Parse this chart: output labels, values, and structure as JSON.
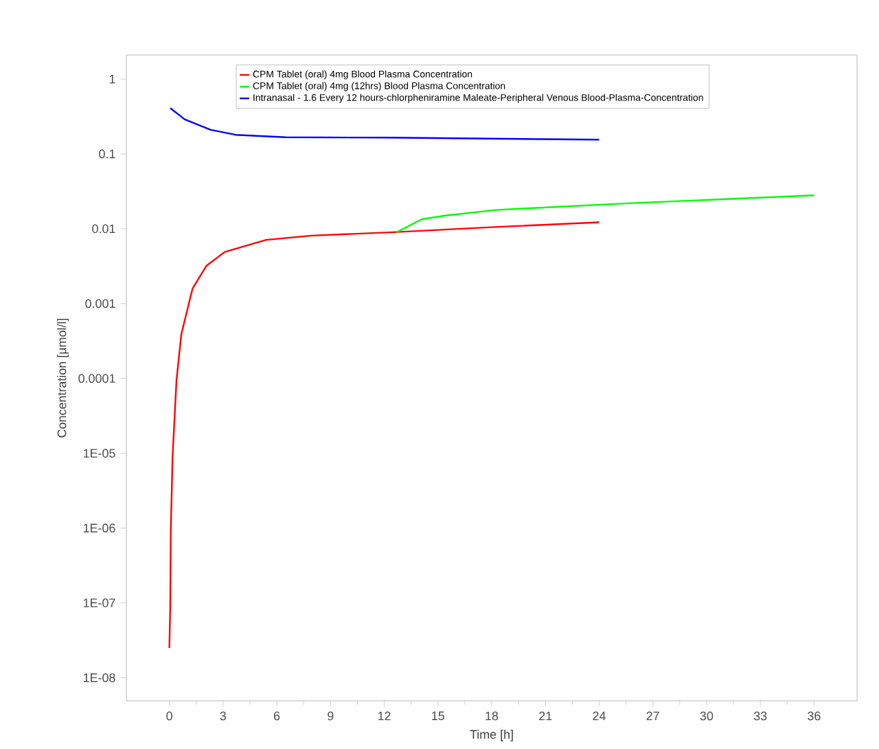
{
  "chart_data": {
    "type": "line",
    "xlabel": "Time [h]",
    "ylabel": "Concentration [µmol/l]",
    "log": "y",
    "grid": false,
    "legend": "top",
    "marker": "none",
    "xlim": [
      -2.4,
      38.4
    ],
    "xticks": [
      0,
      3,
      6,
      9,
      12,
      15,
      18,
      21,
      24,
      27,
      30,
      33,
      36
    ],
    "ylim": [
      4.9e-09,
      2.1
    ],
    "yticks": [
      1,
      0.1,
      0.01,
      0.001,
      0.0001,
      {
        "value": 1e-05,
        "label": "1E-05"
      },
      {
        "value": 1e-06,
        "label": "1E-06"
      },
      {
        "value": 1e-07,
        "label": "1E-07"
      },
      {
        "value": 1e-08,
        "label": "1E-08"
      }
    ],
    "series": [
      {
        "name": "CPM Tablet (oral) 4mg Blood Plasma Concentration",
        "color": "#ff0000",
        "x": [
          0,
          0.05,
          0.08,
          0.18,
          0.4,
          0.67,
          1.3,
          2.07,
          3.1,
          5.4,
          7.95,
          12.55,
          18,
          24
        ],
        "values": [
          2.5e-08,
          9e-08,
          9e-07,
          9e-06,
          9.5e-05,
          0.00039,
          0.0016,
          0.0032,
          0.0049,
          0.0071,
          0.0081,
          0.009,
          0.0105,
          0.0122
        ]
      },
      {
        "name": "CPM Tablet (oral) 4mg (12hrs)  Blood Plasma Concentration",
        "color": "#00ff00",
        "x": [
          12.7,
          14.1,
          15.4,
          18.2,
          19.7,
          25.8,
          36
        ],
        "values": [
          0.009,
          0.0134,
          0.015,
          0.0178,
          0.0186,
          0.022,
          0.028
        ]
      },
      {
        "name": "Intranasal - 1.6 Every 12 hours-chlorpheniramine Maleate-Peripheral Venous Blood-Plasma-Concentration",
        "color": "#0000ff",
        "x": [
          0.05,
          0.85,
          2.3,
          3.7,
          6.5,
          12.2,
          24
        ],
        "values": [
          0.41,
          0.29,
          0.21,
          0.18,
          0.167,
          0.165,
          0.155
        ]
      }
    ]
  }
}
